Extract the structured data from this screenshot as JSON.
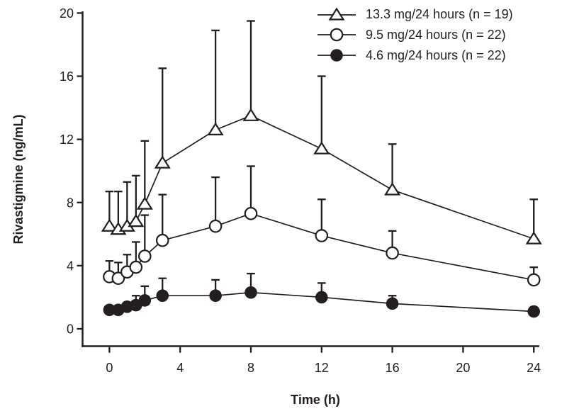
{
  "figure": {
    "background": "#ffffff",
    "line_color": "#231f20"
  },
  "chart_data": {
    "type": "line",
    "title": "",
    "xlabel": "Time (h)",
    "ylabel": "Rivastigmine (ng/mL)",
    "xlim": [
      0,
      24
    ],
    "ylim": [
      0,
      20
    ],
    "xticks": [
      0,
      4,
      8,
      12,
      16,
      20,
      24
    ],
    "yticks": [
      0,
      4,
      8,
      12,
      16,
      20
    ],
    "grid": false,
    "legend_position": "top-right",
    "error_bars": "upper-only",
    "x": [
      0,
      0.5,
      1,
      1.5,
      2,
      3,
      6,
      8,
      12,
      16,
      24
    ],
    "series": [
      {
        "name": "13.3 mg/24 hours (n = 19)",
        "marker": "open-triangle",
        "color": "#231f20",
        "values": [
          6.5,
          6.3,
          6.5,
          6.8,
          7.9,
          10.5,
          12.6,
          13.5,
          11.4,
          8.8,
          5.7
        ],
        "err_top": [
          8.7,
          8.7,
          9.3,
          9.7,
          11.9,
          16.5,
          18.9,
          19.5,
          16.0,
          11.7,
          8.2
        ]
      },
      {
        "name": "9.5 mg/24 hours (n = 22)",
        "marker": "open-circle",
        "color": "#231f20",
        "values": [
          3.3,
          3.2,
          3.6,
          3.9,
          4.6,
          5.6,
          6.5,
          7.3,
          5.9,
          4.8,
          3.1
        ],
        "err_top": [
          4.3,
          4.2,
          4.7,
          5.5,
          7.2,
          8.5,
          9.6,
          10.3,
          8.2,
          6.2,
          3.9
        ]
      },
      {
        "name": "4.6 mg/24 hours (n = 22)",
        "marker": "filled-circle",
        "color": "#231f20",
        "values": [
          1.2,
          1.2,
          1.4,
          1.5,
          1.8,
          2.1,
          2.1,
          2.3,
          2.0,
          1.6,
          1.1
        ],
        "err_top": [
          null,
          null,
          null,
          2.1,
          2.7,
          3.2,
          3.1,
          3.5,
          2.9,
          2.1,
          null
        ]
      }
    ]
  }
}
